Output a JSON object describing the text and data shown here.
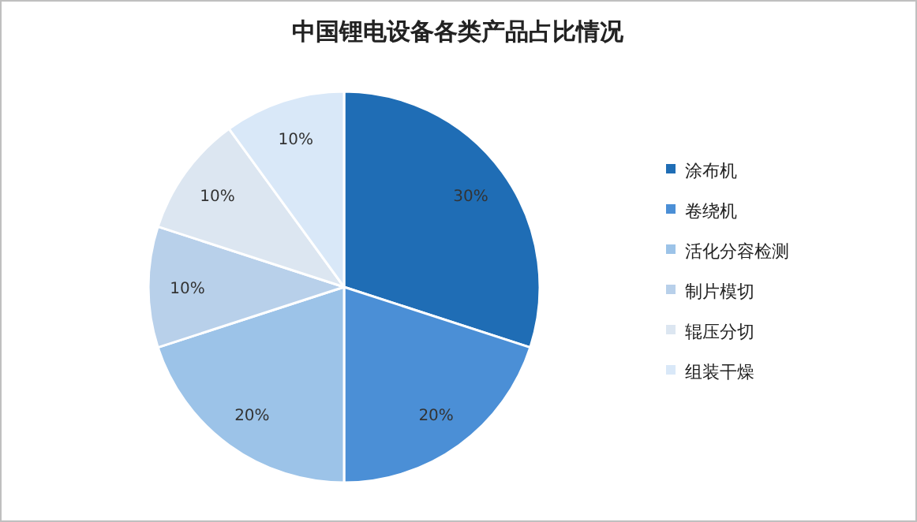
{
  "chart_data": {
    "type": "pie",
    "title": "中国锂电设备各类产品占比情况",
    "categories": [
      "涂布机",
      "卷绕机",
      "活化分容检测",
      "制片模切",
      "辊压分切",
      "组装干燥"
    ],
    "values": [
      30,
      20,
      20,
      10,
      10,
      10
    ],
    "colors": [
      "#1f6db5",
      "#4b8fd6",
      "#9cc3e8",
      "#b8d0ea",
      "#dce6f1",
      "#d9e8f8"
    ],
    "value_labels": [
      "30%",
      "20%",
      "20%",
      "10%",
      "10%",
      "10%"
    ],
    "legend": "right"
  }
}
